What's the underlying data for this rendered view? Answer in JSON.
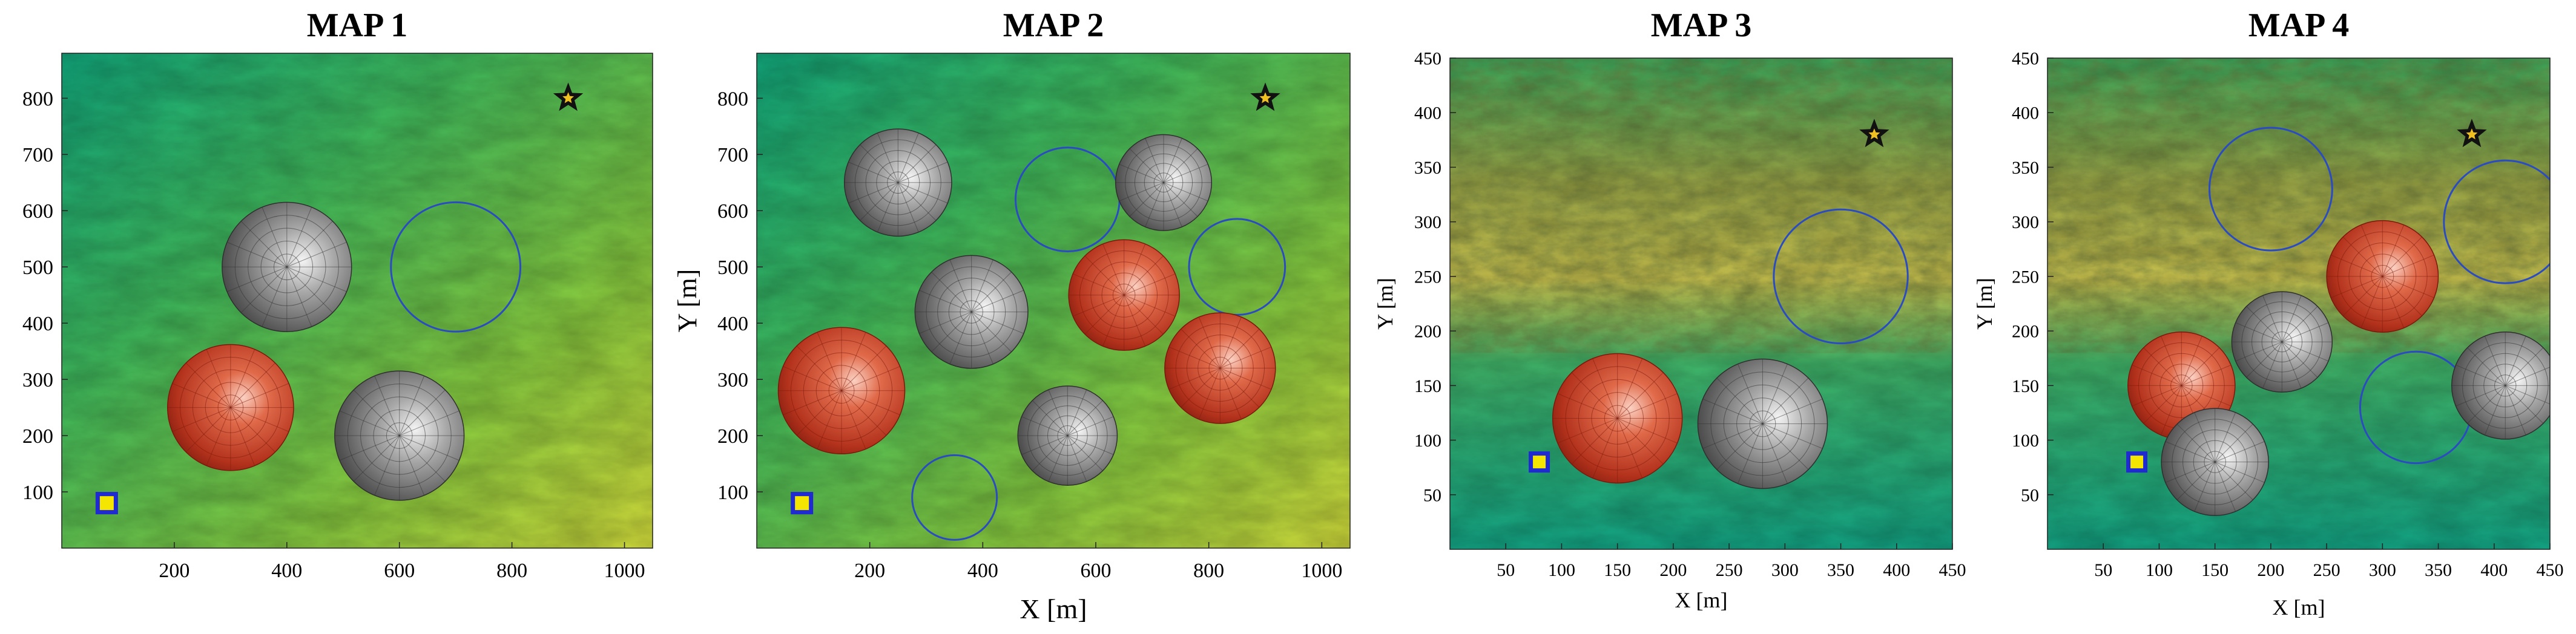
{
  "chart_data": [
    {
      "type": "scatter",
      "title": "MAP 1",
      "xlabel": "",
      "ylabel": "",
      "xlim": [
        0,
        1050
      ],
      "ylim": [
        0,
        880
      ],
      "xticks": [
        "200",
        "400",
        "600",
        "800",
        "1000"
      ],
      "xtick_values": [
        200,
        400,
        600,
        800,
        1000
      ],
      "yticks": [
        "100",
        "200",
        "300",
        "400",
        "500",
        "600",
        "700",
        "800"
      ],
      "ytick_values": [
        100,
        200,
        300,
        400,
        500,
        600,
        700,
        800
      ],
      "terrain": "plain",
      "start": {
        "x": 80,
        "y": 80
      },
      "goal": {
        "x": 900,
        "y": 800
      },
      "obstacles": [
        {
          "kind": "gray-dome",
          "x": 400,
          "y": 500,
          "r": 115
        },
        {
          "kind": "red-dome",
          "x": 300,
          "y": 250,
          "r": 112
        },
        {
          "kind": "gray-dome",
          "x": 600,
          "y": 200,
          "r": 115
        },
        {
          "kind": "blue-circle",
          "x": 700,
          "y": 500,
          "r": 115
        }
      ]
    },
    {
      "type": "scatter",
      "title": "MAP 2",
      "xlabel": "X [m]",
      "ylabel": "Y [m]",
      "xlim": [
        0,
        1050
      ],
      "ylim": [
        0,
        880
      ],
      "xticks": [
        "200",
        "400",
        "600",
        "800",
        "1000"
      ],
      "xtick_values": [
        200,
        400,
        600,
        800,
        1000
      ],
      "yticks": [
        "100",
        "200",
        "300",
        "400",
        "500",
        "600",
        "700",
        "800"
      ],
      "ytick_values": [
        100,
        200,
        300,
        400,
        500,
        600,
        700,
        800
      ],
      "terrain": "plain",
      "start": {
        "x": 80,
        "y": 80
      },
      "goal": {
        "x": 900,
        "y": 800
      },
      "obstacles": [
        {
          "kind": "gray-dome",
          "x": 250,
          "y": 650,
          "r": 95
        },
        {
          "kind": "blue-circle",
          "x": 550,
          "y": 620,
          "r": 92
        },
        {
          "kind": "gray-dome",
          "x": 720,
          "y": 650,
          "r": 85
        },
        {
          "kind": "gray-dome",
          "x": 380,
          "y": 420,
          "r": 100
        },
        {
          "kind": "red-dome",
          "x": 650,
          "y": 450,
          "r": 98
        },
        {
          "kind": "blue-circle",
          "x": 850,
          "y": 500,
          "r": 85
        },
        {
          "kind": "red-dome",
          "x": 150,
          "y": 280,
          "r": 112
        },
        {
          "kind": "red-dome",
          "x": 820,
          "y": 320,
          "r": 98
        },
        {
          "kind": "gray-dome",
          "x": 550,
          "y": 200,
          "r": 88
        },
        {
          "kind": "blue-circle",
          "x": 350,
          "y": 90,
          "r": 75
        }
      ]
    },
    {
      "type": "scatter",
      "title": "MAP 3",
      "xlabel": "X [m]",
      "ylabel": "Y [m]",
      "xlim": [
        0,
        450
      ],
      "ylim": [
        0,
        450
      ],
      "xticks": [
        "50",
        "100",
        "150",
        "200",
        "250",
        "300",
        "350",
        "400",
        "450"
      ],
      "xtick_values": [
        50,
        100,
        150,
        200,
        250,
        300,
        350,
        400,
        450
      ],
      "yticks": [
        "50",
        "100",
        "150",
        "200",
        "250",
        "300",
        "350",
        "400",
        "450"
      ],
      "ytick_values": [
        50,
        100,
        150,
        200,
        250,
        300,
        350,
        400,
        450
      ],
      "terrain": "mountain",
      "start": {
        "x": 80,
        "y": 80
      },
      "goal": {
        "x": 380,
        "y": 380
      },
      "obstacles": [
        {
          "kind": "blue-circle",
          "x": 350,
          "y": 250,
          "r": 60
        },
        {
          "kind": "red-dome",
          "x": 150,
          "y": 120,
          "r": 58
        },
        {
          "kind": "gray-dome",
          "x": 280,
          "y": 115,
          "r": 58
        }
      ]
    },
    {
      "type": "scatter",
      "title": "MAP 4",
      "xlabel": "X [m]",
      "ylabel": "Y [m]",
      "xlim": [
        0,
        450
      ],
      "ylim": [
        0,
        450
      ],
      "xticks": [
        "50",
        "100",
        "150",
        "200",
        "250",
        "300",
        "350",
        "400",
        "450"
      ],
      "xtick_values": [
        50,
        100,
        150,
        200,
        250,
        300,
        350,
        400,
        450
      ],
      "yticks": [
        "50",
        "100",
        "150",
        "200",
        "250",
        "300",
        "350",
        "400",
        "450"
      ],
      "ytick_values": [
        50,
        100,
        150,
        200,
        250,
        300,
        350,
        400,
        450
      ],
      "terrain": "mountain",
      "start": {
        "x": 80,
        "y": 80
      },
      "goal": {
        "x": 380,
        "y": 380
      },
      "obstacles": [
        {
          "kind": "blue-circle",
          "x": 200,
          "y": 330,
          "r": 55
        },
        {
          "kind": "blue-circle",
          "x": 410,
          "y": 300,
          "r": 55
        },
        {
          "kind": "red-dome",
          "x": 300,
          "y": 250,
          "r": 50
        },
        {
          "kind": "gray-dome",
          "x": 210,
          "y": 190,
          "r": 45
        },
        {
          "kind": "red-dome",
          "x": 120,
          "y": 150,
          "r": 48
        },
        {
          "kind": "blue-circle",
          "x": 330,
          "y": 130,
          "r": 50
        },
        {
          "kind": "gray-dome",
          "x": 410,
          "y": 150,
          "r": 48
        },
        {
          "kind": "gray-dome",
          "x": 150,
          "y": 80,
          "r": 48
        }
      ]
    }
  ],
  "colors": {
    "low": "#11a984",
    "mid": "#5cc14a",
    "high": "#d7dc3a",
    "ridge": "#8a9a2a",
    "blue_circle": "#2b4cc0",
    "start_fill": "#f5e600",
    "start_border": "#1f2bd1",
    "goal": "#111111",
    "goal_center": "#f0c020"
  }
}
